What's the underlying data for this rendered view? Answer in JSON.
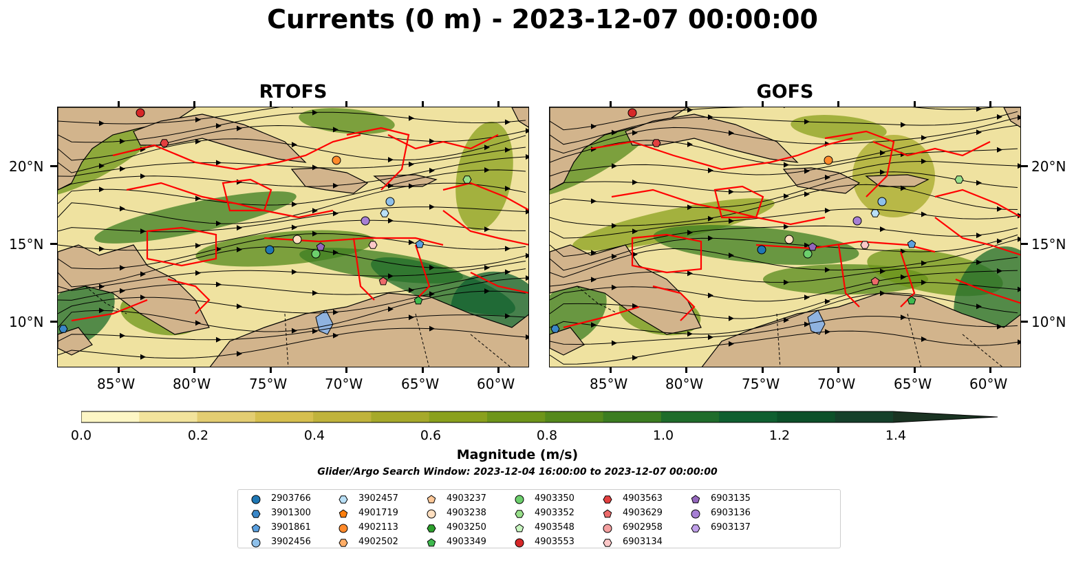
{
  "title": "Currents (0 m) - 2023-12-07 00:00:00",
  "panels": [
    {
      "title": "RTOFS"
    },
    {
      "title": "GOFS"
    }
  ],
  "axes": {
    "lat_labels": [
      "20°N",
      "15°N",
      "10°N"
    ],
    "lon_labels": [
      "85°W",
      "80°W",
      "75°W",
      "70°W",
      "65°W",
      "60°W"
    ]
  },
  "colorbar": {
    "label": "Magnitude (m/s)",
    "ticks": [
      "0.0",
      "0.2",
      "0.4",
      "0.6",
      "0.8",
      "1.0",
      "1.2",
      "1.4"
    ],
    "range": [
      0,
      1.5
    ],
    "extend": "max",
    "colors": [
      "#fdf6c5",
      "#f2e39c",
      "#e3cd72",
      "#d6bf4f",
      "#c0b33c",
      "#a6a92a",
      "#8aa01d",
      "#6e951a",
      "#55891c",
      "#3c7d21",
      "#1f6c2b",
      "#0f5f30",
      "#0c5029",
      "#15402a",
      "#1a3322"
    ]
  },
  "search_window": "Glider/Argo Search Window: 2023-12-04 16:00:00 to 2023-12-07 00:00:00",
  "map_colors": {
    "land": "#d2b48c",
    "lake": "#8fb3e0",
    "tracks": "#ff0000",
    "stream": "#000000"
  },
  "legend": [
    {
      "id": "2903766",
      "color": "#1f77b4",
      "marker": "circle"
    },
    {
      "id": "3901300",
      "color": "#3a87c8",
      "marker": "hexagon"
    },
    {
      "id": "3901861",
      "color": "#5aa0e0",
      "marker": "pentagon"
    },
    {
      "id": "3902456",
      "color": "#8ec0ea",
      "marker": "circle"
    },
    {
      "id": "3902457",
      "color": "#b9e0f7",
      "marker": "hexagon"
    },
    {
      "id": "4901719",
      "color": "#ff7f0e",
      "marker": "pentagon"
    },
    {
      "id": "4902113",
      "color": "#ff8a2b",
      "marker": "circle"
    },
    {
      "id": "4902502",
      "color": "#ffad66",
      "marker": "hexagon"
    },
    {
      "id": "4903237",
      "color": "#ffc898",
      "marker": "pentagon"
    },
    {
      "id": "4903238",
      "color": "#ffdfc0",
      "marker": "circle"
    },
    {
      "id": "4903250",
      "color": "#2ca02c",
      "marker": "hexagon"
    },
    {
      "id": "4903349",
      "color": "#3eb94e",
      "marker": "pentagon"
    },
    {
      "id": "4903350",
      "color": "#6ccf6c",
      "marker": "circle"
    },
    {
      "id": "4903352",
      "color": "#98df8a",
      "marker": "hexagon"
    },
    {
      "id": "4903548",
      "color": "#c8f5c0",
      "marker": "pentagon"
    },
    {
      "id": "4903553",
      "color": "#d62728",
      "marker": "circle"
    },
    {
      "id": "4903563",
      "color": "#e34040",
      "marker": "hexagon"
    },
    {
      "id": "4903629",
      "color": "#ec6a6a",
      "marker": "pentagon"
    },
    {
      "id": "6902958",
      "color": "#f4a0a0",
      "marker": "circle"
    },
    {
      "id": "6903134",
      "color": "#fcc8c8",
      "marker": "hexagon"
    },
    {
      "id": "6903135",
      "color": "#9467bd",
      "marker": "pentagon"
    },
    {
      "id": "6903136",
      "color": "#a67fd4",
      "marker": "circle"
    },
    {
      "id": "6903137",
      "color": "#c0a0ea",
      "marker": "hexagon"
    }
  ]
}
